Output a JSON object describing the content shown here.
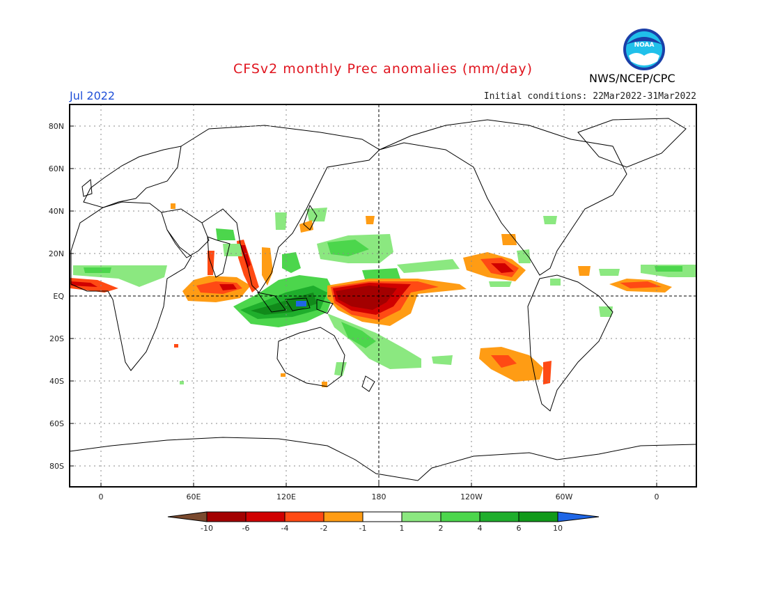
{
  "header": {
    "title": "CFSv2 monthly Prec anomalies (mm/day)",
    "month": "Jul 2022",
    "initial_conditions": "Initial conditions: 22Mar2022-31Mar2022",
    "agency": "NWS/NCEP/CPC",
    "logo_text": "NOAA"
  },
  "map": {
    "lat_labels": [
      "80N",
      "60N",
      "40N",
      "20N",
      "EQ",
      "20S",
      "40S",
      "60S",
      "80S"
    ],
    "lon_labels": [
      "0",
      "60E",
      "120E",
      "180",
      "120W",
      "60W",
      "0"
    ]
  },
  "colorbar": {
    "labels": [
      "-10",
      "-6",
      "-4",
      "-2",
      "-1",
      "1",
      "2",
      "4",
      "6",
      "10"
    ],
    "colors": [
      "#7a4a2e",
      "#a30000",
      "#d00000",
      "#ff4a14",
      "#ff9c14",
      "#ffffff",
      "#8be880",
      "#4cd64c",
      "#1fae2c",
      "#119a1a",
      "#1f66e6"
    ]
  },
  "anomaly_colors": {
    "dry_strong": "#a30000",
    "dry_mid": "#d01a00",
    "dry": "#ff4a14",
    "dry_light": "#ff9c14",
    "wet_light": "#8be880",
    "wet": "#4cd64c",
    "wet_mid": "#1fae2c",
    "wet_strong": "#118a1a",
    "extreme_wet": "#1f66e6"
  }
}
